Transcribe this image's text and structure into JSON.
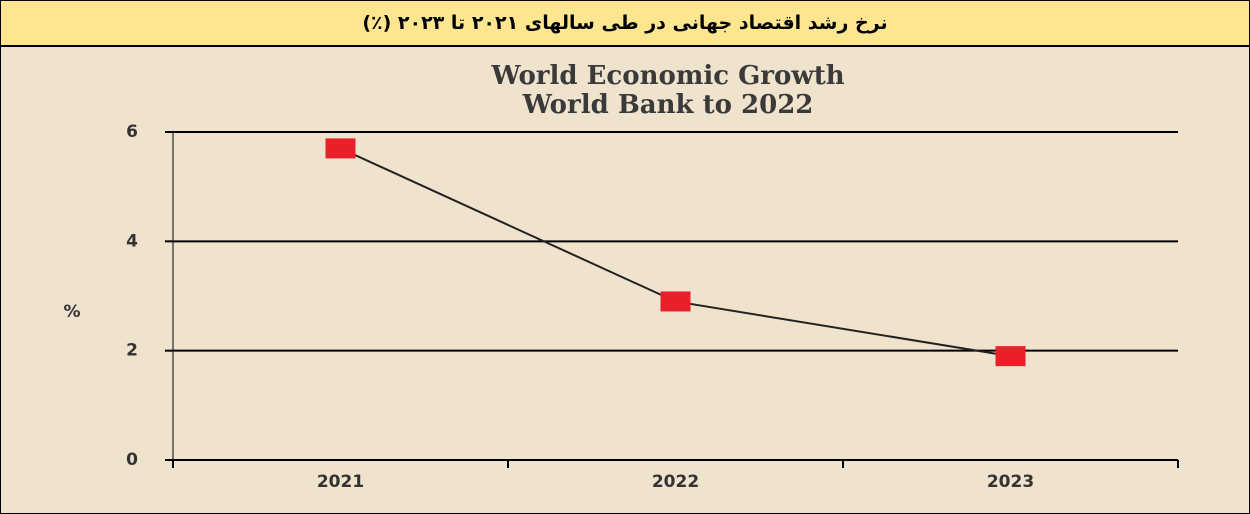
{
  "header": {
    "title": "نرخ رشد اقتصاد جهانی در طی سالهای ۲۰۲۱ تا ۲۰۲۳ (٪)"
  },
  "chart_data": {
    "type": "line",
    "title": "World Economic Growth",
    "subtitle": "World Bank to 2022",
    "y_label": "%",
    "categories": [
      "2021",
      "2022",
      "2023"
    ],
    "series": [
      {
        "name": "World Economic Growth",
        "color": "#e8202a",
        "values": [
          5.7,
          2.9,
          1.9
        ]
      }
    ],
    "line_color": "#222222",
    "ylim": [
      0,
      6
    ],
    "yticks": [
      0,
      2,
      4,
      6
    ],
    "grid": true
  }
}
